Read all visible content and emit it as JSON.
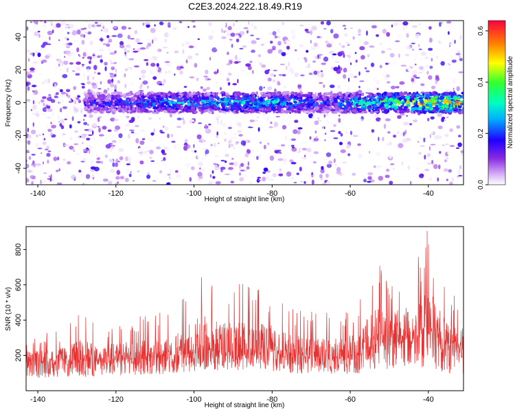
{
  "title": "C2E3.2024.222.18.49.R19",
  "chart_data": [
    {
      "type": "heatmap",
      "xlabel": "Height of straight line (km)",
      "ylabel": "Frequency (Hz)",
      "xlim": [
        -143,
        -31
      ],
      "ylim": [
        -50,
        50
      ],
      "xticks": [
        -140,
        -120,
        -100,
        -80,
        -60,
        -40
      ],
      "yticks": [
        -40,
        -20,
        0,
        20,
        40
      ],
      "colorbar": {
        "label": "Normalized spectral amplitude",
        "range": [
          0,
          0.64
        ],
        "ticks": [
          0.0,
          0.2,
          0.4,
          0.6
        ],
        "tick_labels": [
          "0.0",
          "0.2",
          "0.4",
          "0.6"
        ]
      },
      "band": {
        "center_hz": 0,
        "half_width_hz": 6,
        "x": [
          -128,
          -120,
          -110,
          -100,
          -95,
          -90,
          -85,
          -80,
          -75,
          -70,
          -65,
          -60,
          -55,
          -50,
          -45,
          -40,
          -35,
          -31
        ],
        "peak_amplitude": [
          0.18,
          0.22,
          0.3,
          0.32,
          0.34,
          0.36,
          0.34,
          0.33,
          0.3,
          0.28,
          0.22,
          0.34,
          0.4,
          0.45,
          0.5,
          0.6,
          0.62,
          0.5
        ]
      },
      "grid": false,
      "legend": "none"
    },
    {
      "type": "line",
      "xlabel": "Height of straight line (km)",
      "ylabel": "SNR (10 * v/v)",
      "xlim": [
        -143,
        -31
      ],
      "ylim": [
        0,
        930
      ],
      "xticks": [
        -140,
        -120,
        -100,
        -80,
        -60,
        -40
      ],
      "yticks": [
        200,
        400,
        600,
        800
      ],
      "color": "#e83030",
      "envelope": {
        "x": [
          -143,
          -138,
          -133,
          -128,
          -125,
          -120,
          -115,
          -110,
          -105,
          -100,
          -98,
          -95,
          -90,
          -85,
          -80,
          -75,
          -70,
          -65,
          -60,
          -57,
          -54,
          -52,
          -50,
          -47,
          -44,
          -42,
          -40,
          -38,
          -36,
          -33,
          -31
        ],
        "low": [
          40,
          40,
          45,
          45,
          50,
          50,
          55,
          55,
          60,
          65,
          65,
          70,
          70,
          70,
          65,
          60,
          60,
          55,
          55,
          55,
          60,
          70,
          60,
          60,
          55,
          55,
          50,
          40,
          35,
          30,
          35
        ],
        "mean": [
          150,
          150,
          160,
          155,
          160,
          165,
          170,
          175,
          185,
          210,
          215,
          220,
          210,
          215,
          210,
          190,
          175,
          170,
          180,
          210,
          260,
          270,
          250,
          280,
          260,
          300,
          320,
          300,
          260,
          240,
          230
        ],
        "peak": [
          320,
          330,
          350,
          480,
          360,
          400,
          420,
          460,
          480,
          640,
          710,
          600,
          620,
          600,
          580,
          500,
          460,
          440,
          480,
          530,
          760,
          700,
          600,
          740,
          700,
          800,
          930,
          720,
          640,
          540,
          500
        ]
      },
      "grid": false,
      "legend": "none"
    }
  ]
}
